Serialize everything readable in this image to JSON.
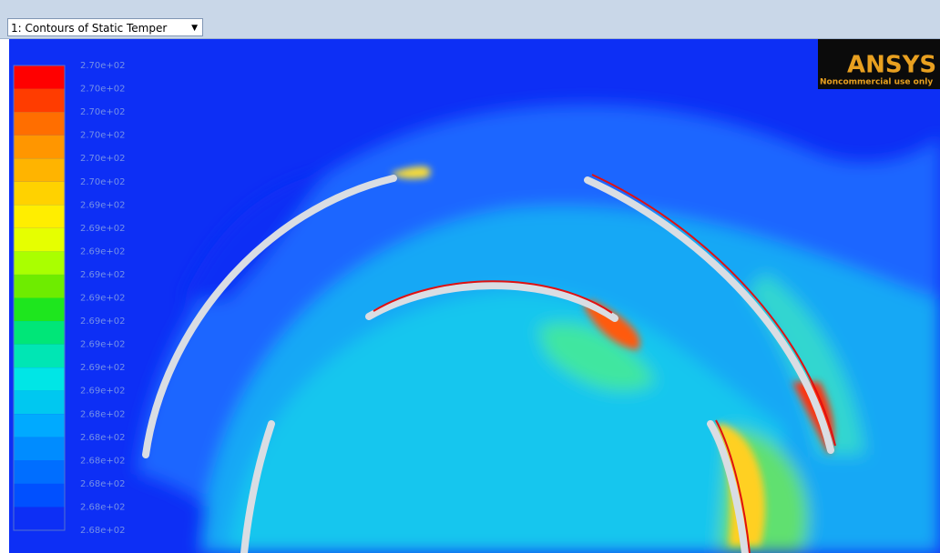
{
  "toolbar": {
    "dropdown": "1: Contours of Static Temper"
  },
  "logo": {
    "brand": "ANSYS",
    "note": "Noncommercial use only"
  },
  "legend": {
    "labels": [
      "2.70e+02",
      "2.70e+02",
      "2.70e+02",
      "2.70e+02",
      "2.70e+02",
      "2.70e+02",
      "2.69e+02",
      "2.69e+02",
      "2.69e+02",
      "2.69e+02",
      "2.69e+02",
      "2.69e+02",
      "2.69e+02",
      "2.69e+02",
      "2.69e+02",
      "2.68e+02",
      "2.68e+02",
      "2.68e+02",
      "2.68e+02",
      "2.68e+02",
      "2.68e+02"
    ]
  }
}
